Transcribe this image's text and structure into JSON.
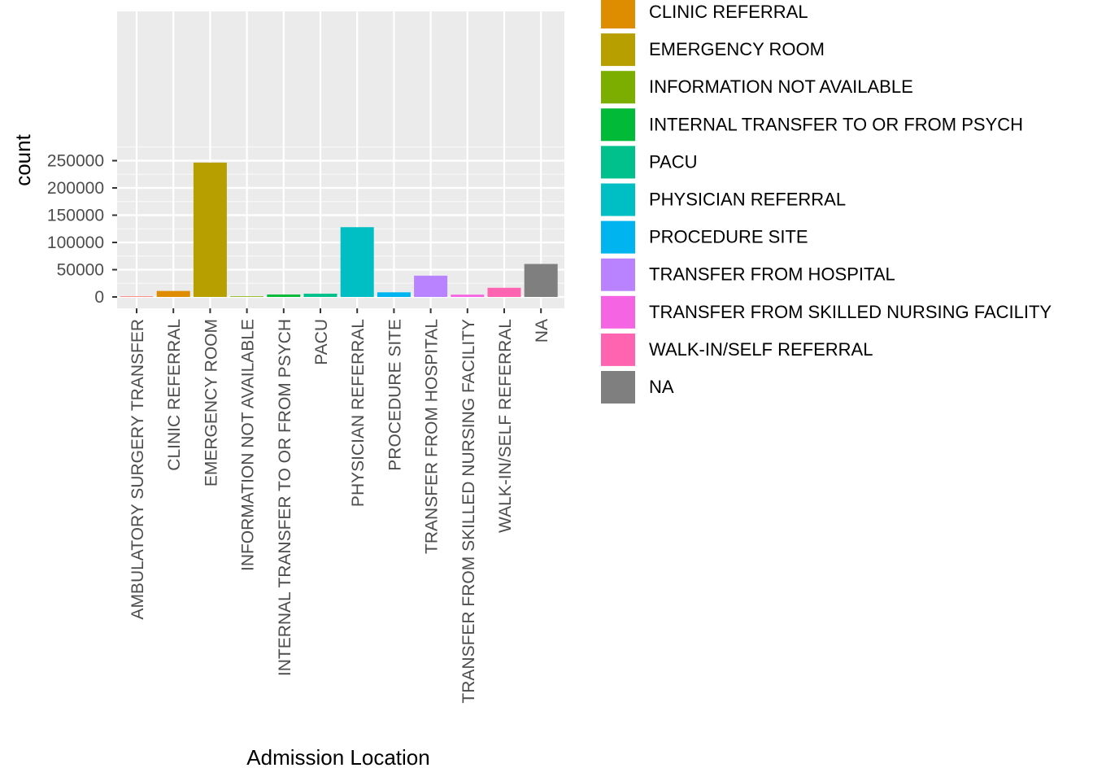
{
  "chart_data": {
    "type": "bar",
    "xlabel": "Admission Location",
    "ylabel": "count",
    "ylim": [
      0,
      262000
    ],
    "yticks": [
      0,
      50000,
      100000,
      150000,
      200000,
      250000
    ],
    "ytick_labels": [
      "0",
      "50000",
      "100000",
      "150000",
      "200000",
      "250000"
    ],
    "grid": true,
    "legend_position": "right",
    "categories": [
      "AMBULATORY SURGERY TRANSFER",
      "CLINIC REFERRAL",
      "EMERGENCY ROOM",
      "INFORMATION NOT AVAILABLE",
      "INTERNAL TRANSFER TO OR FROM PSYCH",
      "PACU",
      "PHYSICIAN REFERRAL",
      "PROCEDURE SITE",
      "TRANSFER FROM HOSPITAL",
      "TRANSFER FROM SKILLED NURSING FACILITY",
      "WALK-IN/SELF REFERRAL",
      "NA"
    ],
    "values": [
      150,
      11000,
      246500,
      900,
      4500,
      6000,
      128000,
      8500,
      39000,
      4200,
      16800,
      60500
    ],
    "colors": [
      "#F8766D",
      "#DE8C00",
      "#B79F00",
      "#7CAE00",
      "#00BA38",
      "#00C08B",
      "#00BFC4",
      "#00B4F0",
      "#B983FF",
      "#F564E3",
      "#FF64B0",
      "#7F7F7F"
    ],
    "legend_entries": [
      "CLINIC REFERRAL",
      "EMERGENCY ROOM",
      "INFORMATION NOT AVAILABLE",
      "INTERNAL TRANSFER TO OR FROM PSYCH",
      "PACU",
      "PHYSICIAN REFERRAL",
      "PROCEDURE SITE",
      "TRANSFER FROM HOSPITAL",
      "TRANSFER FROM SKILLED NURSING FACILITY",
      "WALK-IN/SELF REFERRAL",
      "NA"
    ],
    "legend_colors": [
      "#DE8C00",
      "#B79F00",
      "#7CAE00",
      "#00BA38",
      "#00C08B",
      "#00BFC4",
      "#00B4F0",
      "#B983FF",
      "#F564E3",
      "#FF64B0",
      "#7F7F7F"
    ]
  }
}
